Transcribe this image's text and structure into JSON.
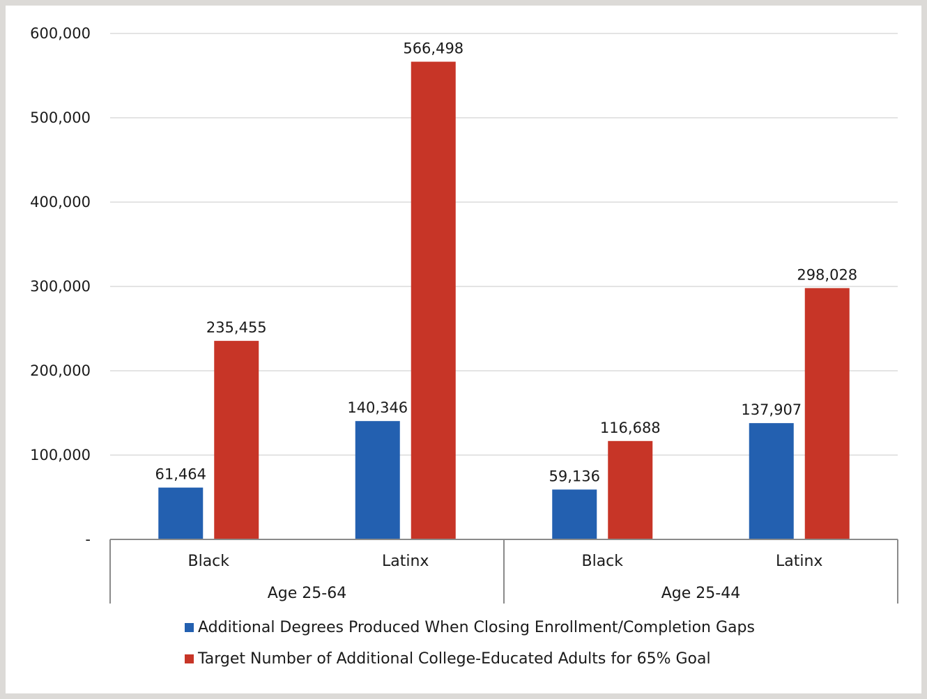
{
  "chart_data": {
    "type": "bar",
    "groups": [
      {
        "label": "Age 25-64",
        "categories": [
          "Black",
          "Latinx"
        ]
      },
      {
        "label": "Age 25-44",
        "categories": [
          "Black",
          "Latinx"
        ]
      }
    ],
    "categories": [
      "Black",
      "Latinx",
      "Black",
      "Latinx"
    ],
    "series": [
      {
        "name": "Additional Degrees Produced When Closing Enrollment/Completion Gaps",
        "color": "#2360b0",
        "values": [
          61464,
          140346,
          59136,
          137907
        ],
        "labels": [
          "61,464",
          "140,346",
          "59,136",
          "137,907"
        ]
      },
      {
        "name": "Target Number of Additional College-Educated Adults for 65% Goal",
        "color": "#c73527",
        "values": [
          235455,
          566498,
          116688,
          298028
        ],
        "labels": [
          "235,455",
          "566,498",
          "116,688",
          "298,028"
        ]
      }
    ],
    "yticks": [
      {
        "value": 0,
        "label": "-"
      },
      {
        "value": 100000,
        "label": "100,000"
      },
      {
        "value": 200000,
        "label": "200,000"
      },
      {
        "value": 300000,
        "label": "300,000"
      },
      {
        "value": 400000,
        "label": "400,000"
      },
      {
        "value": 500000,
        "label": "500,000"
      },
      {
        "value": 600000,
        "label": "600,000"
      }
    ],
    "ylim": [
      0,
      600000
    ],
    "grid": true,
    "legend_position": "bottom"
  }
}
